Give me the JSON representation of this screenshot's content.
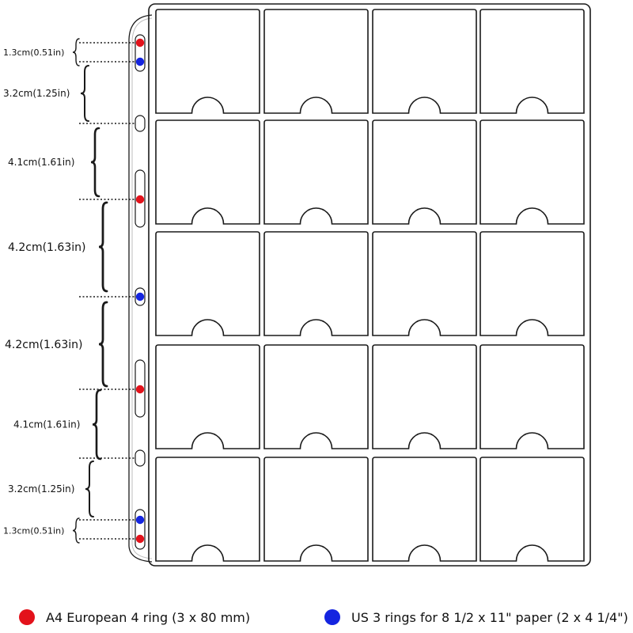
{
  "colors": {
    "a4_ring": "#e3121b",
    "us_ring": "#1424e0",
    "outline": "#1a1a1a"
  },
  "pockets": {
    "rows": 5,
    "cols": 4
  },
  "dimensions": [
    {
      "label": "1.3cm(0.51in)"
    },
    {
      "label": "3.2cm(1.25in)"
    },
    {
      "label": "4.1cm(1.61in)"
    },
    {
      "label": "4.2cm(1.63in)"
    },
    {
      "label": "4.2cm(1.63in)"
    },
    {
      "label": "4.1cm(1.61in)"
    },
    {
      "label": "3.2cm(1.25in)"
    },
    {
      "label": "1.3cm(0.51in)"
    }
  ],
  "legend": {
    "a4": "A4 European 4 ring (3 x 80 mm)",
    "us": "US 3 rings for 8 1/2 x 11\" paper (2 x 4 1/4\")"
  }
}
